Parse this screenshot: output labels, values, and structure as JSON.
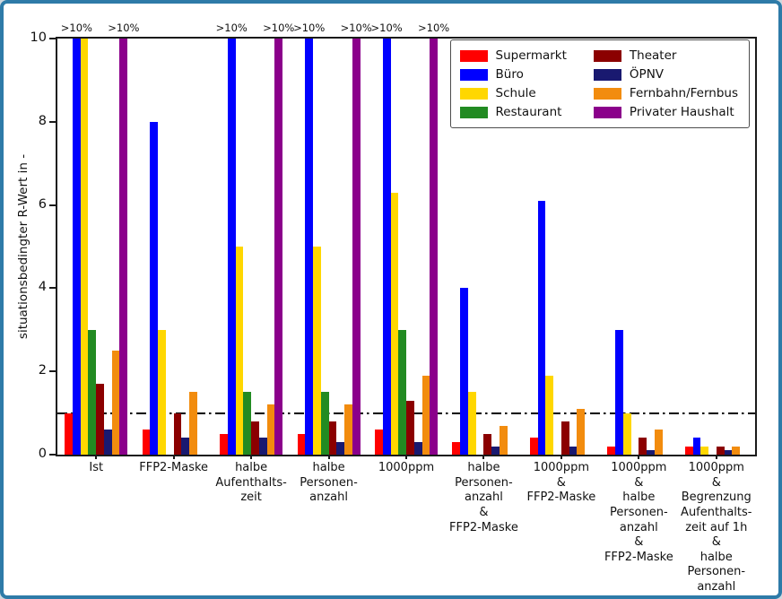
{
  "figure": {
    "frame_color": "#2e7ba8",
    "background": "#ffffff"
  },
  "chart_data": {
    "type": "bar",
    "title": "",
    "xlabel": "",
    "ylabel": "situationsbedingter R-Wert in -",
    "ylim": [
      0,
      10
    ],
    "yticks": [
      0,
      2,
      4,
      6,
      8,
      10
    ],
    "grid": false,
    "legend_position": "top-right",
    "legend_columns": 2,
    "exceed_label": ">10%",
    "reference_line": {
      "y": 1,
      "style": "dash-dot",
      "color": "#000000"
    },
    "categories": [
      "Ist",
      "FFP2-Maske",
      "halbe\nAufenthalts-\nzeit",
      "halbe\nPersonen-\nanzahl",
      "1000ppm",
      "halbe\nPersonen-\nanzahl\n&\nFFP2-Maske",
      "1000ppm\n&\nFFP2-Maske",
      "1000ppm\n&\nhalbe\nPersonen-\nanzahl\n&\nFFP2-Maske",
      "1000ppm\n&\nBegrenzung\nAufenthalts-\nzeit auf 1h\n&\nhalbe\nPersonen-\nanzahl\n&\nFFP2-Maske"
    ],
    "series": [
      {
        "name": "Supermarkt",
        "color": "#ff0000",
        "values": [
          1.0,
          0.6,
          0.5,
          0.5,
          0.6,
          0.3,
          0.4,
          0.2,
          0.2
        ],
        "exceeds": [
          false,
          false,
          false,
          false,
          false,
          false,
          false,
          false,
          false
        ]
      },
      {
        "name": "Büro",
        "color": "#0000ff",
        "values": [
          10,
          8.0,
          10,
          10,
          10,
          4.0,
          6.1,
          3.0,
          0.4
        ],
        "exceeds": [
          true,
          false,
          true,
          true,
          true,
          false,
          false,
          false,
          false
        ]
      },
      {
        "name": "Schule",
        "color": "#ffd700",
        "values": [
          10,
          3.0,
          5.0,
          5.0,
          6.3,
          1.5,
          1.9,
          1.0,
          0.2
        ],
        "exceeds": [
          false,
          false,
          false,
          false,
          false,
          false,
          false,
          false,
          false
        ]
      },
      {
        "name": "Restaurant",
        "color": "#228b22",
        "values": [
          3.0,
          0,
          1.5,
          1.5,
          3.0,
          0,
          0,
          0,
          0
        ],
        "exceeds": [
          false,
          false,
          false,
          false,
          false,
          false,
          false,
          false,
          false
        ]
      },
      {
        "name": "Theater",
        "color": "#8b0000",
        "values": [
          1.7,
          1.0,
          0.8,
          0.8,
          1.3,
          0.5,
          0.8,
          0.4,
          0.2
        ],
        "exceeds": [
          false,
          false,
          false,
          false,
          false,
          false,
          false,
          false,
          false
        ]
      },
      {
        "name": "ÖPNV",
        "color": "#191970",
        "values": [
          0.6,
          0.4,
          0.4,
          0.3,
          0.3,
          0.2,
          0.2,
          0.1,
          0.1
        ],
        "exceeds": [
          false,
          false,
          false,
          false,
          false,
          false,
          false,
          false,
          false
        ]
      },
      {
        "name": "Fernbahn/Fernbus",
        "color": "#f28c0e",
        "values": [
          2.5,
          1.5,
          1.2,
          1.2,
          1.9,
          0.7,
          1.1,
          0.6,
          0.2
        ],
        "exceeds": [
          false,
          false,
          false,
          false,
          false,
          false,
          false,
          false,
          false
        ]
      },
      {
        "name": "Privater Haushalt",
        "color": "#8b008b",
        "values": [
          10,
          0,
          10,
          10,
          10,
          0,
          0,
          0,
          0
        ],
        "exceeds": [
          true,
          false,
          true,
          true,
          true,
          false,
          false,
          false,
          false
        ]
      }
    ]
  }
}
